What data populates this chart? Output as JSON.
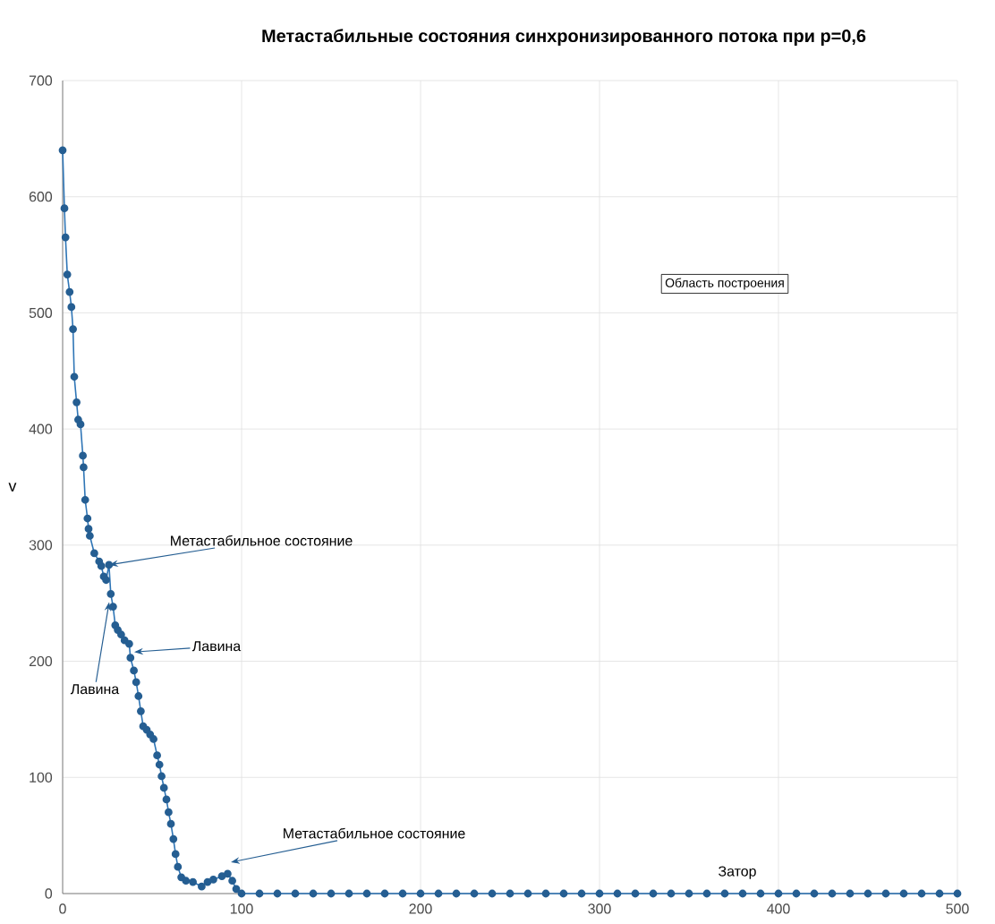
{
  "chart_data": {
    "type": "line",
    "title": "Метастабильные состояния синхронизированного потока при p=0,6",
    "ylabel": "v",
    "x": [
      0,
      1,
      1.6,
      2.6,
      3.9,
      4.9,
      5.8,
      6.5,
      7.8,
      8.7,
      10,
      11.3,
      11.7,
      12.6,
      13.9,
      14.5,
      15.2,
      17.7,
      20.4,
      21.6,
      23,
      24.3,
      25.9,
      26.9,
      28.2,
      29.4,
      30.8,
      32.7,
      34.6,
      37.2,
      37.9,
      39.8,
      41.1,
      42.4,
      43.7,
      45,
      47,
      48.9,
      50.8,
      52.8,
      54.1,
      55.3,
      56.6,
      58,
      59.2,
      60.5,
      61.9,
      63.1,
      64.4,
      66.3,
      68.9,
      72.8,
      77.7,
      81,
      84.2,
      89,
      92.2,
      94.8,
      97,
      100,
      110,
      120,
      130,
      140,
      150,
      160,
      170,
      180,
      190,
      200,
      210,
      220,
      230,
      240,
      250,
      260,
      270,
      280,
      290,
      300,
      310,
      320,
      330,
      340,
      350,
      360,
      370,
      380,
      390,
      400,
      410,
      420,
      430,
      440,
      450,
      460,
      470,
      480,
      490,
      500
    ],
    "series": [
      {
        "color": "#2e75b6",
        "values": [
          640,
          590,
          565,
          533,
          518,
          505,
          486,
          445,
          423,
          408,
          404,
          377,
          367,
          339,
          323,
          314,
          308,
          293,
          286,
          282,
          273,
          270,
          283,
          258,
          247,
          231,
          227,
          223,
          218,
          215,
          203,
          192,
          182,
          170,
          157,
          144,
          141,
          137,
          133,
          119,
          111,
          101,
          91,
          81,
          70,
          60,
          47,
          34,
          23,
          14,
          11,
          10,
          6,
          10,
          12,
          15,
          17,
          11,
          4,
          0,
          0,
          0,
          0,
          0,
          0,
          0,
          0,
          0,
          0,
          0,
          0,
          0,
          0,
          0,
          0,
          0,
          0,
          0,
          0,
          0,
          0,
          0,
          0,
          0,
          0,
          0,
          0,
          0,
          0,
          0,
          0,
          0,
          0,
          0,
          0,
          0,
          0,
          0,
          0,
          0
        ]
      }
    ],
    "xlim": [
      0,
      500
    ],
    "ylim": [
      0,
      700
    ],
    "xticks": [
      0,
      100,
      200,
      300,
      400,
      500
    ],
    "yticks": [
      0,
      100,
      200,
      300,
      400,
      500,
      600,
      700
    ],
    "grid": true,
    "marker": "circle",
    "line_style": "solid",
    "annotations": [
      {
        "text": "Метастабильное состояние",
        "x": 26,
        "y": 283
      },
      {
        "text": "Лавина",
        "x": 40,
        "y": 208
      },
      {
        "text": "Лавина",
        "x": 26,
        "y": 251
      },
      {
        "text": "Метастабильное состояние",
        "x": 94,
        "y": 27
      },
      "Затор",
      "Область построения"
    ]
  }
}
